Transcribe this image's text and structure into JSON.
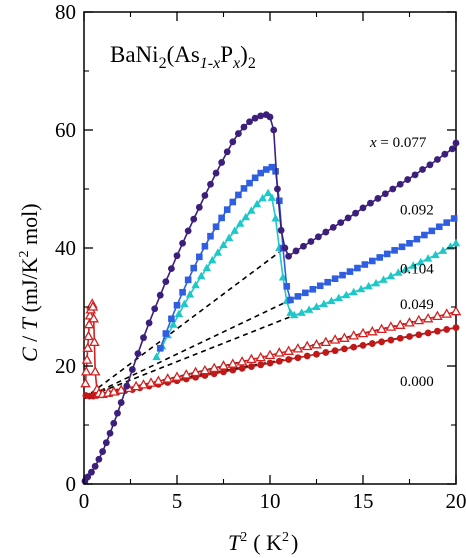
{
  "chart_data": {
    "type": "scatter",
    "title": "",
    "annotation": {
      "prefix": "BaNi",
      "sub1": "2",
      "mid": "(As",
      "sub2": "1-x",
      "mid2": "P",
      "sub3": "x",
      "end": ")",
      "sub4": "2"
    },
    "xlabel": {
      "base": "T",
      "sup": "2",
      "unit": "( K",
      "unit_sup": "2",
      "unit_end": ")"
    },
    "ylabel": {
      "c": "C",
      "slash": " / ",
      "t": "T",
      "unit": " (mJ/K",
      "unit_sup": "2",
      "unit_end": " mol)"
    },
    "xlim": [
      0,
      20
    ],
    "ylim": [
      0,
      80
    ],
    "x_ticks": [
      0,
      5,
      10,
      15,
      20
    ],
    "y_ticks": [
      0,
      20,
      40,
      60,
      80
    ],
    "x_tick_labels": [
      "0",
      "5",
      "10",
      "15",
      "20"
    ],
    "y_tick_labels": [
      "0",
      "20",
      "40",
      "60",
      "80"
    ],
    "grid": false,
    "legend": "inline labels",
    "series": [
      {
        "name": "0.077",
        "prefix": "x = ",
        "color": "#3b1f7a",
        "marker": "circle",
        "x": [
          0.05,
          0.2,
          0.4,
          0.6,
          0.8,
          1.0,
          1.2,
          1.4,
          1.6,
          1.8,
          2.0,
          2.3,
          2.6,
          2.9,
          3.2,
          3.5,
          3.8,
          4.1,
          4.4,
          4.7,
          5.0,
          5.3,
          5.6,
          5.9,
          6.2,
          6.5,
          6.8,
          7.1,
          7.4,
          7.7,
          8.0,
          8.3,
          8.6,
          8.9,
          9.2,
          9.5,
          9.8,
          10.0,
          10.2,
          10.4,
          10.6,
          10.8,
          11.0,
          11.4,
          11.8,
          12.2,
          12.6,
          13.0,
          13.4,
          13.8,
          14.2,
          14.6,
          15.0,
          15.4,
          15.8,
          16.2,
          16.6,
          17.0,
          17.4,
          17.8,
          18.2,
          18.6,
          19.0,
          19.4,
          19.8,
          20.0
        ],
        "y": [
          0.5,
          1.2,
          2.0,
          3.0,
          4.2,
          5.5,
          7.0,
          8.6,
          10.3,
          12.0,
          13.8,
          16.6,
          19.4,
          22.1,
          24.8,
          27.3,
          29.7,
          32.0,
          34.3,
          36.5,
          38.7,
          40.8,
          42.9,
          44.9,
          46.9,
          48.9,
          50.8,
          52.7,
          54.5,
          56.3,
          58.0,
          59.4,
          60.5,
          61.4,
          62.0,
          62.4,
          62.6,
          62.2,
          60.0,
          50.0,
          43.0,
          40.0,
          38.6,
          39.5,
          40.3,
          41.1,
          41.9,
          42.7,
          43.5,
          44.3,
          45.1,
          45.9,
          46.8,
          47.6,
          48.4,
          49.2,
          50.0,
          50.8,
          51.6,
          52.4,
          53.3,
          54.1,
          55.0,
          55.9,
          56.8,
          57.8
        ],
        "fit": {
          "x": [
            0,
            10.8
          ],
          "y": [
            14.5,
            40.0
          ]
        }
      },
      {
        "name": "0.092",
        "prefix": "",
        "color": "#2f5fe0",
        "marker": "square",
        "x": [
          4.1,
          4.4,
          4.7,
          5.0,
          5.3,
          5.6,
          5.9,
          6.2,
          6.5,
          6.8,
          7.1,
          7.4,
          7.7,
          8.0,
          8.3,
          8.6,
          8.9,
          9.2,
          9.5,
          9.8,
          10.1,
          10.3,
          10.5,
          10.7,
          10.9,
          11.1,
          11.5,
          11.9,
          12.3,
          12.7,
          13.1,
          13.5,
          13.9,
          14.3,
          14.7,
          15.1,
          15.5,
          15.9,
          16.3,
          16.7,
          17.1,
          17.5,
          17.9,
          18.3,
          18.7,
          19.1,
          19.5,
          19.9
        ],
        "y": [
          23.0,
          25.5,
          28.0,
          30.3,
          32.5,
          34.6,
          36.6,
          38.5,
          40.3,
          42.0,
          43.6,
          45.1,
          46.5,
          47.8,
          49.0,
          50.1,
          51.0,
          51.9,
          52.7,
          53.3,
          53.7,
          53.0,
          48.0,
          40.0,
          33.5,
          31.2,
          31.8,
          32.4,
          33.0,
          33.6,
          34.2,
          34.8,
          35.4,
          36.0,
          36.6,
          37.2,
          37.8,
          38.4,
          39.0,
          39.6,
          40.2,
          40.8,
          41.5,
          42.2,
          42.9,
          43.6,
          44.3,
          45.0
        ],
        "fit": {
          "x": [
            0,
            11.1
          ],
          "y": [
            14.5,
            31.2
          ]
        }
      },
      {
        "name": "0.104",
        "prefix": "",
        "color": "#1fc8c8",
        "marker": "triangle",
        "x": [
          3.9,
          4.2,
          4.5,
          4.8,
          5.1,
          5.4,
          5.7,
          6.0,
          6.3,
          6.6,
          6.9,
          7.2,
          7.5,
          7.8,
          8.1,
          8.4,
          8.7,
          9.0,
          9.3,
          9.6,
          9.9,
          10.1,
          10.3,
          10.5,
          10.7,
          10.9,
          11.1,
          11.3,
          11.7,
          12.1,
          12.5,
          12.9,
          13.3,
          13.7,
          14.1,
          14.5,
          14.9,
          15.3,
          15.7,
          16.1,
          16.5,
          16.9,
          17.3,
          17.7,
          18.1,
          18.5,
          18.9,
          19.3,
          19.7,
          20.0
        ],
        "y": [
          21.5,
          23.3,
          25.2,
          27.0,
          28.8,
          30.5,
          32.1,
          33.7,
          35.2,
          36.6,
          37.9,
          39.2,
          40.5,
          41.7,
          42.9,
          44.1,
          45.2,
          46.3,
          47.4,
          48.4,
          49.3,
          48.5,
          45.0,
          40.0,
          35.0,
          31.0,
          29.0,
          28.6,
          29.0,
          29.5,
          30.0,
          30.5,
          31.0,
          31.5,
          32.0,
          32.5,
          33.0,
          33.5,
          34.0,
          34.6,
          35.2,
          35.8,
          36.4,
          37.0,
          37.6,
          38.2,
          38.8,
          39.5,
          40.2,
          40.8
        ],
        "fit": {
          "x": [
            0,
            11.3
          ],
          "y": [
            14.5,
            28.6
          ]
        }
      },
      {
        "name": "0.049",
        "prefix": "",
        "color": "#d42020",
        "marker": "triangle-open",
        "x": [
          0.08,
          0.12,
          0.16,
          0.2,
          0.24,
          0.28,
          0.32,
          0.36,
          0.4,
          0.44,
          0.48,
          0.52,
          0.56,
          0.6,
          0.7,
          0.8,
          1.0,
          1.3,
          1.6,
          2.0,
          2.4,
          2.8,
          3.2,
          3.6,
          4.0,
          4.5,
          5.0,
          5.5,
          6.0,
          6.5,
          7.0,
          7.5,
          8.0,
          8.5,
          9.0,
          9.5,
          10.0,
          10.5,
          11.0,
          11.5,
          12.0,
          12.5,
          13.0,
          13.5,
          14.0,
          14.5,
          15.0,
          15.5,
          16.0,
          16.5,
          17.0,
          17.5,
          18.0,
          18.5,
          19.0,
          19.5,
          20.0
        ],
        "y": [
          17.0,
          19.0,
          21.0,
          23.0,
          25.0,
          27.0,
          28.5,
          29.5,
          30.2,
          30.5,
          30.0,
          28.0,
          24.0,
          19.0,
          16.0,
          15.3,
          15.2,
          15.4,
          15.6,
          15.9,
          16.2,
          16.5,
          16.8,
          17.1,
          17.4,
          17.8,
          18.1,
          18.5,
          18.9,
          19.2,
          19.6,
          20.0,
          20.3,
          20.7,
          21.1,
          21.4,
          21.8,
          22.2,
          22.5,
          22.9,
          23.3,
          23.6,
          24.0,
          24.4,
          24.7,
          25.1,
          25.5,
          25.8,
          26.2,
          26.6,
          26.9,
          27.3,
          27.7,
          28.0,
          28.4,
          28.8,
          29.2
        ],
        "fit": {
          "x": [
            0,
            20
          ],
          "y": [
            14.5,
            29.2
          ]
        }
      },
      {
        "name": "0.000",
        "prefix": "",
        "color": "#c01818",
        "marker": "circle",
        "x": [
          0.1,
          0.3,
          0.5,
          0.7,
          1.0,
          1.4,
          1.8,
          2.2,
          2.6,
          3.0,
          3.5,
          4.0,
          4.5,
          5.0,
          5.5,
          6.0,
          6.5,
          7.0,
          7.5,
          8.0,
          8.5,
          9.0,
          9.5,
          10.0,
          10.5,
          11.0,
          11.5,
          12.0,
          12.5,
          13.0,
          13.5,
          14.0,
          14.5,
          15.0,
          15.5,
          16.0,
          16.5,
          17.0,
          17.5,
          18.0,
          18.5,
          19.0,
          19.5,
          20.0
        ],
        "y": [
          15.0,
          14.9,
          14.9,
          15.0,
          15.1,
          15.3,
          15.6,
          15.8,
          16.0,
          16.3,
          16.6,
          16.9,
          17.2,
          17.5,
          17.8,
          18.1,
          18.4,
          18.7,
          19.0,
          19.3,
          19.6,
          19.9,
          20.2,
          20.5,
          20.8,
          21.1,
          21.4,
          21.7,
          22.0,
          22.3,
          22.6,
          22.9,
          23.2,
          23.5,
          23.8,
          24.1,
          24.4,
          24.7,
          25.0,
          25.3,
          25.6,
          25.9,
          26.2,
          26.5
        ],
        "fit": {
          "x": [
            0,
            20
          ],
          "y": [
            14.8,
            26.5
          ]
        }
      }
    ],
    "label_y": [
      58.0,
      46.5,
      36.5,
      30.5,
      17.5
    ]
  }
}
